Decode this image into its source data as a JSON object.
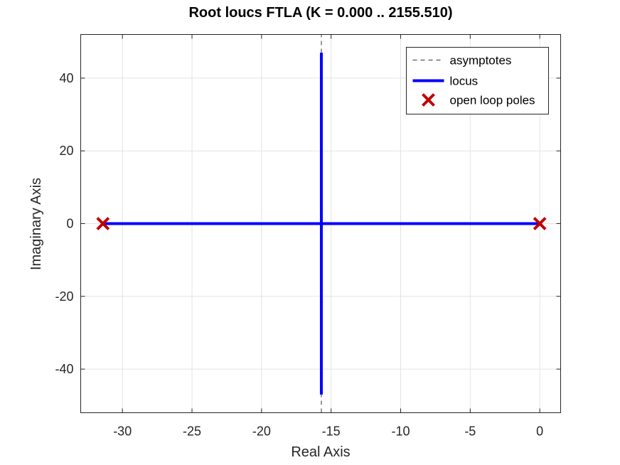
{
  "chart_data": {
    "type": "line",
    "title": "Root loucs FTLA (K = 0.000 .. 2155.510)",
    "xlabel": "Real Axis",
    "ylabel": "Imaginary Axis",
    "xlim": [
      -33,
      1.5
    ],
    "ylim": [
      -52,
      52
    ],
    "xticks": [
      -30,
      -25,
      -20,
      -15,
      -10,
      -5,
      0
    ],
    "xtick_labels": [
      "-30",
      "-25",
      "-20",
      "-15",
      "-10",
      "-5",
      "0"
    ],
    "yticks": [
      -40,
      -20,
      0,
      20,
      40
    ],
    "ytick_labels": [
      "-40",
      "-20",
      "0",
      "20",
      "40"
    ],
    "grid": true,
    "legend_position": "top-right",
    "colors": {
      "locus": "#0000ff",
      "poles": "#c00000",
      "asymptotes": "#555555"
    },
    "series": [
      {
        "name": "asymptotes",
        "kind": "dashed-line",
        "x": [
          -15.7,
          -15.7
        ],
        "y": [
          -52,
          52
        ]
      },
      {
        "name": "locus",
        "kind": "line",
        "segments": [
          {
            "x": [
              -31.4,
              -15.7
            ],
            "y": [
              0,
              0
            ]
          },
          {
            "x": [
              0,
              -15.7
            ],
            "y": [
              0,
              0
            ]
          },
          {
            "x": [
              -15.7,
              -15.7
            ],
            "y": [
              0,
              47
            ]
          },
          {
            "x": [
              -15.7,
              -15.7
            ],
            "y": [
              0,
              -47
            ]
          }
        ]
      },
      {
        "name": "open loop poles",
        "kind": "marker-x",
        "x": [
          -31.4,
          0
        ],
        "y": [
          0,
          0
        ]
      }
    ]
  }
}
